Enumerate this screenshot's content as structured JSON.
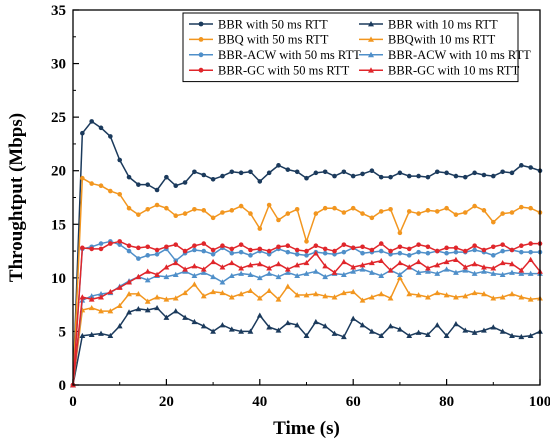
{
  "chart_data": {
    "type": "line",
    "title": "",
    "xlabel": "Time (s)",
    "ylabel": "Throughtput (Mbps)",
    "xlim": [
      0,
      100
    ],
    "ylim": [
      0,
      35
    ],
    "xticks": [
      "0",
      "20",
      "40",
      "60",
      "80",
      "100"
    ],
    "yticks": [
      "0",
      "5",
      "10",
      "15",
      "20",
      "25",
      "30",
      "35"
    ],
    "grid": false,
    "legend_position": "top-right",
    "x": [
      0,
      2,
      4,
      6,
      8,
      10,
      12,
      14,
      16,
      18,
      20,
      22,
      24,
      26,
      28,
      30,
      32,
      34,
      36,
      38,
      40,
      42,
      44,
      46,
      48,
      50,
      52,
      54,
      56,
      58,
      60,
      62,
      64,
      66,
      68,
      70,
      72,
      74,
      76,
      78,
      80,
      82,
      84,
      86,
      88,
      90,
      92,
      94,
      96,
      98,
      100
    ],
    "series": [
      {
        "name": "BBR with 50 ms RTT",
        "color": "#1b3a5c",
        "marker": "circle",
        "values": [
          0,
          23.5,
          24.6,
          24.0,
          23.2,
          21.0,
          19.4,
          18.7,
          18.7,
          18.2,
          19.4,
          18.6,
          18.9,
          19.9,
          19.6,
          19.2,
          19.5,
          19.9,
          19.8,
          19.9,
          19.0,
          19.8,
          20.5,
          20.1,
          19.9,
          19.3,
          19.8,
          19.9,
          19.5,
          19.9,
          19.5,
          19.7,
          20.0,
          19.4,
          19.4,
          19.8,
          19.5,
          19.5,
          19.4,
          19.9,
          19.8,
          19.5,
          19.4,
          19.8,
          19.6,
          19.5,
          19.9,
          19.8,
          20.5,
          20.3,
          20.0
        ]
      },
      {
        "name": "BBR with 10 ms RTT",
        "color": "#1b3a5c",
        "marker": "triangle",
        "values": [
          0,
          4.6,
          4.7,
          4.8,
          4.6,
          5.5,
          6.8,
          7.1,
          7.0,
          7.2,
          6.3,
          6.9,
          6.3,
          5.9,
          5.5,
          5.0,
          5.6,
          5.2,
          5.0,
          5.0,
          6.5,
          5.4,
          5.1,
          5.8,
          5.6,
          4.6,
          5.9,
          5.5,
          4.8,
          4.5,
          6.2,
          5.6,
          5.0,
          4.6,
          5.5,
          5.2,
          4.6,
          4.9,
          4.7,
          5.6,
          4.6,
          5.7,
          5.1,
          4.9,
          5.1,
          5.4,
          5.0,
          4.6,
          4.5,
          4.6,
          5.0
        ]
      },
      {
        "name": "BBQ with 50 ms RTT",
        "color": "#f2961f",
        "marker": "circle",
        "values": [
          0,
          19.3,
          18.8,
          18.6,
          18.1,
          17.8,
          16.5,
          15.9,
          16.4,
          16.8,
          16.5,
          15.8,
          16.0,
          16.4,
          16.3,
          15.6,
          16.1,
          16.3,
          16.7,
          16.0,
          14.6,
          16.8,
          15.4,
          16.0,
          16.4,
          13.4,
          16.0,
          16.5,
          16.5,
          16.1,
          16.5,
          16.0,
          15.6,
          16.2,
          16.4,
          14.2,
          16.2,
          16.0,
          16.3,
          16.2,
          16.5,
          15.9,
          16.1,
          16.7,
          16.3,
          15.2,
          16.0,
          16.1,
          16.6,
          16.5,
          16.1
        ]
      },
      {
        "name": "BBQwith 10 ms RTT",
        "color": "#f2961f",
        "marker": "triangle",
        "values": [
          0,
          7.0,
          7.2,
          6.9,
          6.9,
          7.4,
          8.5,
          8.5,
          7.8,
          8.2,
          8.0,
          8.1,
          8.6,
          9.4,
          8.3,
          8.7,
          8.6,
          8.2,
          8.5,
          8.8,
          8.1,
          8.8,
          8.0,
          9.2,
          8.4,
          8.4,
          8.5,
          8.3,
          8.2,
          8.6,
          8.7,
          7.9,
          8.2,
          8.5,
          8.1,
          10.0,
          8.5,
          8.4,
          8.2,
          8.6,
          8.4,
          8.2,
          8.3,
          8.6,
          8.5,
          8.1,
          8.2,
          8.5,
          8.2,
          8.0,
          8.1
        ]
      },
      {
        "name": "BBR-ACW with 50 ms RTT",
        "color": "#4f8fc9",
        "marker": "circle",
        "values": [
          0,
          12.7,
          12.9,
          13.2,
          13.4,
          13.1,
          12.5,
          11.8,
          12.1,
          12.2,
          12.7,
          11.6,
          12.3,
          12.6,
          12.5,
          12.2,
          12.8,
          12.3,
          12.4,
          12.1,
          12.5,
          12.2,
          12.7,
          12.4,
          12.2,
          12.1,
          12.4,
          12.3,
          12.2,
          12.4,
          12.8,
          12.3,
          12.4,
          12.5,
          12.2,
          12.3,
          12.1,
          12.4,
          12.3,
          12.5,
          12.3,
          12.4,
          12.4,
          12.6,
          12.4,
          12.1,
          12.5,
          12.6,
          12.4,
          12.4,
          12.4
        ]
      },
      {
        "name": "BBR-ACW with 10 ms RTT",
        "color": "#4f8fc9",
        "marker": "triangle",
        "values": [
          0,
          7.9,
          8.3,
          8.5,
          8.6,
          9.2,
          9.7,
          10.1,
          9.8,
          10.2,
          10.1,
          10.3,
          10.6,
          10.2,
          10.5,
          10.1,
          9.6,
          10.2,
          10.4,
          10.3,
          10.0,
          10.4,
          10.1,
          10.5,
          10.2,
          10.4,
          10.6,
          10.1,
          10.4,
          10.3,
          10.6,
          10.8,
          10.5,
          10.2,
          10.7,
          10.3,
          11.0,
          10.5,
          10.6,
          10.4,
          10.8,
          10.5,
          10.7,
          10.4,
          10.6,
          10.4,
          10.3,
          10.5,
          10.4,
          10.4,
          10.4
        ]
      },
      {
        "name": "BBR-GC with 50 ms RTT",
        "color": "#e0262b",
        "marker": "circle",
        "values": [
          0,
          12.8,
          12.7,
          12.7,
          13.2,
          13.4,
          13.0,
          12.8,
          12.9,
          12.6,
          12.9,
          13.1,
          12.5,
          13.0,
          13.2,
          12.6,
          13.0,
          12.7,
          13.1,
          12.6,
          12.7,
          12.5,
          12.9,
          13.0,
          12.6,
          12.5,
          13.0,
          12.7,
          12.5,
          13.1,
          12.8,
          12.9,
          12.6,
          13.2,
          12.5,
          12.9,
          12.7,
          13.1,
          12.9,
          12.5,
          12.8,
          12.8,
          12.5,
          13.0,
          12.6,
          12.9,
          13.1,
          12.6,
          13.0,
          13.2,
          13.2
        ]
      },
      {
        "name": "BBR-GC with 10 ms RTT",
        "color": "#e0262b",
        "marker": "triangle",
        "values": [
          0,
          8.2,
          8.0,
          8.2,
          8.7,
          9.1,
          9.6,
          10.1,
          10.6,
          10.3,
          11.0,
          11.4,
          10.8,
          11.1,
          10.8,
          11.5,
          11.0,
          11.4,
          10.9,
          11.2,
          11.3,
          10.9,
          11.3,
          10.8,
          11.2,
          11.4,
          12.3,
          11.1,
          10.5,
          11.5,
          11.0,
          11.2,
          11.4,
          11.6,
          10.7,
          11.4,
          11.0,
          11.5,
          10.9,
          11.2,
          11.5,
          11.7,
          11.0,
          11.3,
          11.0,
          10.9,
          11.4,
          11.3,
          10.7,
          11.7,
          10.6
        ]
      }
    ]
  }
}
